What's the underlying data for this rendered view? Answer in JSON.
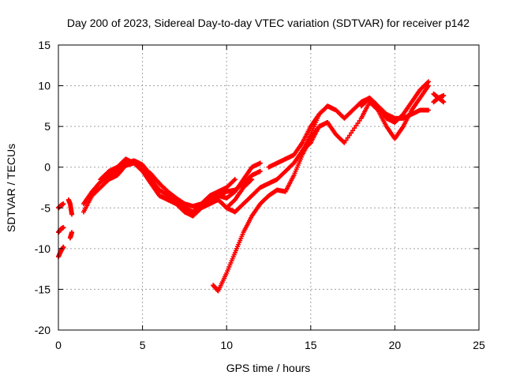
{
  "chart_data": {
    "type": "scatter",
    "title": "Day 200 of 2023, Sidereal Day-to-day VTEC variation (SDTVAR) for receiver p142",
    "xlabel": "GPS time / hours",
    "ylabel": "SDTVAR / TECUs",
    "xlim": [
      0,
      25
    ],
    "ylim": [
      -20,
      15
    ],
    "xticks": [
      0,
      5,
      10,
      15,
      20,
      25
    ],
    "yticks": [
      -20,
      -15,
      -10,
      -5,
      0,
      5,
      10,
      15
    ],
    "grid": true,
    "marker_color": "#ff0000",
    "series": [
      {
        "name": "early-left-a",
        "x": [
          0.0,
          0.15,
          0.3
        ],
        "y": [
          -5.0,
          -4.7,
          -4.5
        ]
      },
      {
        "name": "early-left-b",
        "x": [
          0.0,
          0.15,
          0.3
        ],
        "y": [
          -8.0,
          -7.6,
          -7.4
        ]
      },
      {
        "name": "early-left-c",
        "x": [
          0.0,
          0.15,
          0.3
        ],
        "y": [
          -11.0,
          -10.3,
          -9.8
        ]
      },
      {
        "name": "early-left-d",
        "x": [
          0.6,
          0.7,
          0.8
        ],
        "y": [
          -4.0,
          -4.5,
          -5.8
        ]
      },
      {
        "name": "early-left-e",
        "x": [
          0.7,
          0.8
        ],
        "y": [
          -8.7,
          -8.0
        ]
      },
      {
        "name": "arc-1",
        "x": [
          1.5,
          2.0,
          2.5,
          3.0,
          3.5,
          4.0,
          4.5,
          5.0,
          5.5,
          6.0,
          6.5,
          7.0,
          7.5,
          8.0,
          8.5,
          9.0,
          9.5,
          10.0,
          10.5,
          11.0,
          11.5,
          12.0
        ],
        "y": [
          -5.5,
          -3.5,
          -2.5,
          -1.5,
          -1.0,
          0.2,
          0.5,
          -0.3,
          -1.5,
          -2.8,
          -3.5,
          -4.2,
          -5.0,
          -5.5,
          -4.8,
          -4.2,
          -3.5,
          -3.0,
          -2.8,
          -2.0,
          -1.0,
          -0.5
        ]
      },
      {
        "name": "arc-2",
        "x": [
          1.5,
          2.0,
          2.5,
          3.0,
          3.5,
          4.0,
          4.5,
          5.0,
          5.5,
          6.0,
          6.5,
          7.0,
          7.5,
          8.0,
          8.5,
          9.0,
          9.5,
          10.0,
          10.5,
          11.0,
          11.5,
          12.0
        ],
        "y": [
          -4.5,
          -3.0,
          -1.8,
          -1.0,
          -0.5,
          0.5,
          0.8,
          0.3,
          -1.0,
          -2.0,
          -3.0,
          -3.8,
          -4.5,
          -4.8,
          -4.5,
          -3.8,
          -3.5,
          -3.8,
          -3.0,
          -1.5,
          0.0,
          0.5
        ]
      },
      {
        "name": "arc-3",
        "x": [
          2.5,
          3.0,
          3.5,
          4.0,
          4.5,
          5.0,
          5.5,
          6.0,
          6.5,
          7.0,
          7.5,
          8.0,
          8.5,
          9.0,
          9.5,
          10.0,
          10.5,
          11.0,
          11.5
        ],
        "y": [
          -1.5,
          -0.5,
          0.0,
          1.0,
          0.5,
          -0.5,
          -2.0,
          -3.5,
          -4.0,
          -4.5,
          -5.5,
          -6.0,
          -5.0,
          -4.5,
          -4.0,
          -5.0,
          -4.0,
          -2.5,
          -1.5
        ]
      },
      {
        "name": "arc-4",
        "x": [
          5.0,
          5.5,
          6.0,
          6.5,
          7.0,
          7.5,
          8.0,
          8.5,
          9.0,
          9.5,
          10.0,
          10.5
        ],
        "y": [
          0.0,
          -0.8,
          -2.0,
          -3.0,
          -4.0,
          -5.0,
          -5.5,
          -4.5,
          -3.5,
          -3.0,
          -2.5,
          -1.5
        ]
      },
      {
        "name": "dip-loop",
        "x": [
          9.5,
          10.0,
          10.5,
          11.0,
          11.5,
          12.0,
          12.5,
          13.0,
          13.5,
          14.0,
          14.5,
          15.0
        ],
        "y": [
          -4.0,
          -5.0,
          -5.5,
          -4.5,
          -3.5,
          -2.5,
          -2.0,
          -1.5,
          -0.5,
          0.5,
          2.0,
          3.0
        ]
      },
      {
        "name": "mid-rise",
        "x": [
          12.5,
          13.0,
          13.5,
          14.0,
          14.5,
          15.0,
          15.5,
          16.0,
          16.5
        ],
        "y": [
          0.0,
          0.5,
          1.0,
          1.5,
          3.0,
          5.0,
          6.5,
          7.5,
          7.0
        ]
      },
      {
        "name": "low-rise",
        "x": [
          9.2,
          9.5,
          10.0,
          10.5,
          11.0,
          11.5,
          12.0,
          12.5,
          13.0,
          13.5,
          14.0,
          14.5,
          15.0,
          15.5,
          16.0
        ],
        "y": [
          -14.5,
          -15.2,
          -13.0,
          -10.5,
          -8.0,
          -6.0,
          -4.5,
          -3.5,
          -2.8,
          -3.0,
          -1.0,
          1.5,
          3.5,
          5.0,
          5.5
        ]
      },
      {
        "name": "late-a",
        "x": [
          14.5,
          15.0,
          15.5,
          16.0,
          16.5,
          17.0,
          17.5,
          18.0,
          18.5,
          19.0,
          19.5,
          20.0,
          20.5,
          21.0,
          21.5,
          22.0
        ],
        "y": [
          2.0,
          4.0,
          6.5,
          7.5,
          7.0,
          6.0,
          7.0,
          8.0,
          8.5,
          7.5,
          6.0,
          5.5,
          6.5,
          8.0,
          9.5,
          10.5
        ]
      },
      {
        "name": "late-b",
        "x": [
          15.0,
          15.5,
          16.0,
          16.5,
          17.0,
          18.0,
          18.5,
          19.0,
          19.5,
          20.0,
          20.5,
          21.0,
          21.5,
          22.0
        ],
        "y": [
          3.0,
          5.0,
          5.5,
          4.0,
          3.0,
          6.0,
          8.0,
          7.0,
          5.0,
          3.5,
          5.0,
          7.0,
          8.5,
          10.0
        ]
      },
      {
        "name": "late-c",
        "x": [
          18.0,
          18.5,
          19.0,
          19.5,
          20.0,
          20.5,
          21.0,
          21.5,
          22.0
        ],
        "y": [
          7.5,
          8.5,
          7.5,
          6.5,
          6.0,
          6.0,
          6.5,
          7.0,
          7.0
        ]
      },
      {
        "name": "late-d",
        "x": [
          22.3,
          22.6,
          22.9
        ],
        "y": [
          9.0,
          8.5,
          8.8
        ]
      },
      {
        "name": "late-e",
        "x": [
          22.3,
          22.6,
          22.9
        ],
        "y": [
          8.0,
          8.5,
          8.0
        ]
      }
    ]
  }
}
